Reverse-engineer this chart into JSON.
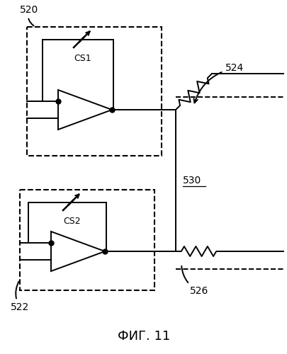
{
  "fig_label": "ФИГ. 11",
  "bg_color": "#ffffff",
  "line_color": "#000000",
  "label_520": "520",
  "label_522": "522",
  "label_524": "524",
  "label_526": "526",
  "label_530": "530",
  "label_cs1": "CS1",
  "label_cs2": "CS2"
}
